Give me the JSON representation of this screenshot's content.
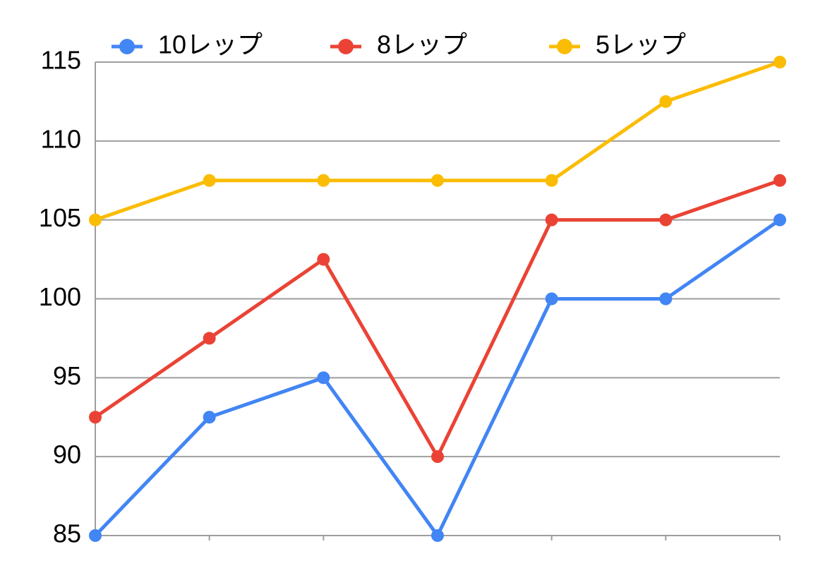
{
  "chart_data": {
    "type": "line",
    "categories": [
      null,
      null,
      null,
      null,
      null,
      null,
      null
    ],
    "series": [
      {
        "name": "10レップ",
        "color": "#4285f4",
        "values": [
          85,
          92.5,
          95,
          85,
          100,
          100,
          105
        ]
      },
      {
        "name": "8レップ",
        "color": "#ea4335",
        "values": [
          92.5,
          97.5,
          102.5,
          90,
          105,
          105,
          107.5
        ]
      },
      {
        "name": "5レップ",
        "color": "#fbbc04",
        "values": [
          105,
          107.5,
          107.5,
          107.5,
          107.5,
          112.5,
          115
        ]
      }
    ],
    "ylim": [
      85,
      115
    ],
    "yticks": [
      85,
      90,
      95,
      100,
      105,
      110,
      115
    ],
    "grid": true,
    "legend": "top"
  }
}
